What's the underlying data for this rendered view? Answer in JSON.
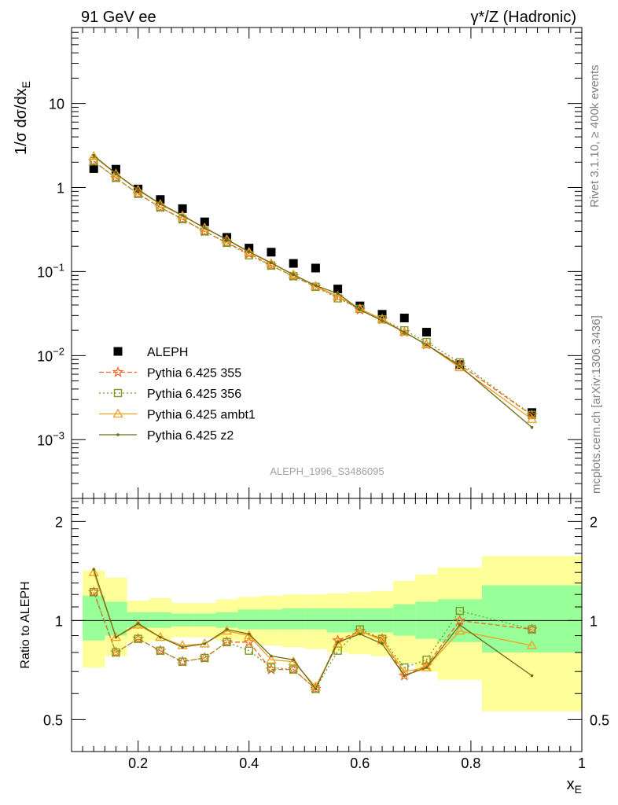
{
  "header": {
    "left": "91 GeV ee",
    "right": "γ*/Z (Hadronic)"
  },
  "side": {
    "rivet": "Rivet 3.1.10, ≥ 400k events",
    "mcplots": "mcplots.cern.ch [arXiv:1306.3436]"
  },
  "watermark": "ALEPH_1996_S3486095",
  "axes": {
    "top_ylabel": "1/σ dσ/dx_E",
    "bottom_ylabel": "Ratio to ALEPH",
    "xlabel": "x_E",
    "x_ticks": [
      "0.2",
      "0.4",
      "0.6",
      "0.8",
      "1"
    ],
    "top_y_ticks": [
      "10^-3",
      "10^-2",
      "10^-1",
      "1",
      "10"
    ],
    "bottom_y_ticks": [
      "0.5",
      "1",
      "2"
    ]
  },
  "legend": [
    {
      "label": "ALEPH",
      "color": "#000000",
      "marker": "square-filled"
    },
    {
      "label": "Pythia 6.425 355",
      "color": "#ee6622",
      "marker": "star",
      "dash": "6,3"
    },
    {
      "label": "Pythia 6.425 356",
      "color": "#7a9a1e",
      "marker": "square-open",
      "dash": "2,3"
    },
    {
      "label": "Pythia 6.425 ambt1",
      "color": "#f0a020",
      "marker": "triangle-open",
      "dash": ""
    },
    {
      "label": "Pythia 6.425 z2",
      "color": "#6b6b18",
      "marker": "dot",
      "dash": ""
    }
  ],
  "chart_data": [
    {
      "type": "scatter",
      "panel": "main",
      "ylabel": "1/σ dσ/dx_E",
      "xlim": [
        0.08,
        1.0
      ],
      "ylim": [
        0.0002,
        80
      ],
      "yscale": "log",
      "x": [
        0.12,
        0.16,
        0.2,
        0.24,
        0.28,
        0.32,
        0.36,
        0.4,
        0.44,
        0.48,
        0.52,
        0.56,
        0.6,
        0.64,
        0.68,
        0.72,
        0.78,
        0.91
      ],
      "series": [
        {
          "name": "ALEPH",
          "values": [
            1.68,
            1.65,
            0.96,
            0.72,
            0.56,
            0.39,
            0.255,
            0.19,
            0.17,
            0.125,
            0.11,
            0.062,
            0.039,
            0.031,
            0.028,
            0.019,
            0.0078,
            0.0021
          ]
        },
        {
          "name": "Pythia 6.425 355",
          "values": [
            2.05,
            1.3,
            0.84,
            0.58,
            0.42,
            0.3,
            0.22,
            0.163,
            0.118,
            0.088,
            0.066,
            0.05,
            0.035,
            0.027,
            0.019,
            0.0135,
            0.0078,
            0.00195
          ]
        },
        {
          "name": "Pythia 6.425 356",
          "values": [
            2.05,
            1.3,
            0.84,
            0.58,
            0.42,
            0.3,
            0.22,
            0.156,
            0.118,
            0.088,
            0.066,
            0.048,
            0.036,
            0.027,
            0.02,
            0.0145,
            0.0083,
            0.00197
          ]
        },
        {
          "name": "Pythia 6.425 ambt1",
          "values": [
            2.35,
            1.45,
            0.93,
            0.63,
            0.46,
            0.33,
            0.24,
            0.17,
            0.125,
            0.092,
            0.067,
            0.051,
            0.036,
            0.027,
            0.019,
            0.0135,
            0.0072,
            0.00175
          ]
        },
        {
          "name": "Pythia 6.425 z2",
          "values": [
            2.4,
            1.46,
            0.94,
            0.64,
            0.465,
            0.33,
            0.24,
            0.172,
            0.127,
            0.092,
            0.068,
            0.055,
            0.035,
            0.026,
            0.019,
            0.0135,
            0.0075,
            0.0014
          ]
        }
      ]
    },
    {
      "type": "line",
      "panel": "ratio",
      "ylabel": "Ratio to ALEPH",
      "xlabel": "x_E",
      "xlim": [
        0.08,
        1.0
      ],
      "ylim": [
        0.4,
        2.35
      ],
      "yscale": "log",
      "reference_line": 1,
      "x": [
        0.12,
        0.16,
        0.2,
        0.24,
        0.28,
        0.32,
        0.36,
        0.4,
        0.44,
        0.48,
        0.52,
        0.56,
        0.6,
        0.64,
        0.68,
        0.72,
        0.78,
        0.91
      ],
      "uncertainty_bands": {
        "bin_edges": [
          0.1,
          0.14,
          0.18,
          0.22,
          0.26,
          0.3,
          0.34,
          0.38,
          0.42,
          0.46,
          0.5,
          0.54,
          0.58,
          0.62,
          0.66,
          0.7,
          0.74,
          0.82,
          1.0
        ],
        "stat_lo": [
          0.87,
          0.9,
          0.95,
          0.95,
          0.96,
          0.96,
          0.95,
          0.94,
          0.94,
          0.94,
          0.94,
          0.92,
          0.92,
          0.92,
          0.9,
          0.88,
          0.86,
          0.8
        ],
        "stat_hi": [
          1.19,
          1.14,
          1.06,
          1.06,
          1.05,
          1.05,
          1.06,
          1.08,
          1.08,
          1.09,
          1.09,
          1.09,
          1.09,
          1.09,
          1.12,
          1.14,
          1.16,
          1.28
        ],
        "tot_lo": [
          0.72,
          0.78,
          0.86,
          0.87,
          0.89,
          0.89,
          0.87,
          0.86,
          0.84,
          0.83,
          0.82,
          0.8,
          0.79,
          0.78,
          0.74,
          0.7,
          0.66,
          0.53
        ],
        "tot_hi": [
          1.42,
          1.35,
          1.15,
          1.17,
          1.13,
          1.13,
          1.16,
          1.18,
          1.19,
          1.2,
          1.2,
          1.21,
          1.22,
          1.23,
          1.32,
          1.38,
          1.45,
          1.57
        ]
      },
      "series": [
        {
          "name": "Pythia 6.425 355",
          "values": [
            1.22,
            0.8,
            0.88,
            0.81,
            0.75,
            0.77,
            0.86,
            0.86,
            0.71,
            0.71,
            0.62,
            0.87,
            0.93,
            0.88,
            0.68,
            0.73,
            1.0,
            0.94
          ]
        },
        {
          "name": "Pythia 6.425 356",
          "values": [
            1.22,
            0.8,
            0.88,
            0.81,
            0.75,
            0.77,
            0.86,
            0.81,
            0.72,
            0.71,
            0.62,
            0.81,
            0.94,
            0.88,
            0.72,
            0.76,
            1.07,
            0.94
          ]
        },
        {
          "name": "Pythia 6.425 ambt1",
          "values": [
            1.4,
            0.89,
            0.97,
            0.89,
            0.84,
            0.85,
            0.93,
            0.9,
            0.76,
            0.75,
            0.63,
            0.85,
            0.93,
            0.87,
            0.7,
            0.72,
            0.93,
            0.84
          ]
        },
        {
          "name": "Pythia 6.425 z2",
          "values": [
            1.43,
            0.89,
            0.98,
            0.89,
            0.83,
            0.85,
            0.94,
            0.91,
            0.78,
            0.76,
            0.62,
            0.86,
            0.91,
            0.85,
            0.68,
            0.72,
            0.97,
            0.68
          ]
        }
      ]
    }
  ]
}
